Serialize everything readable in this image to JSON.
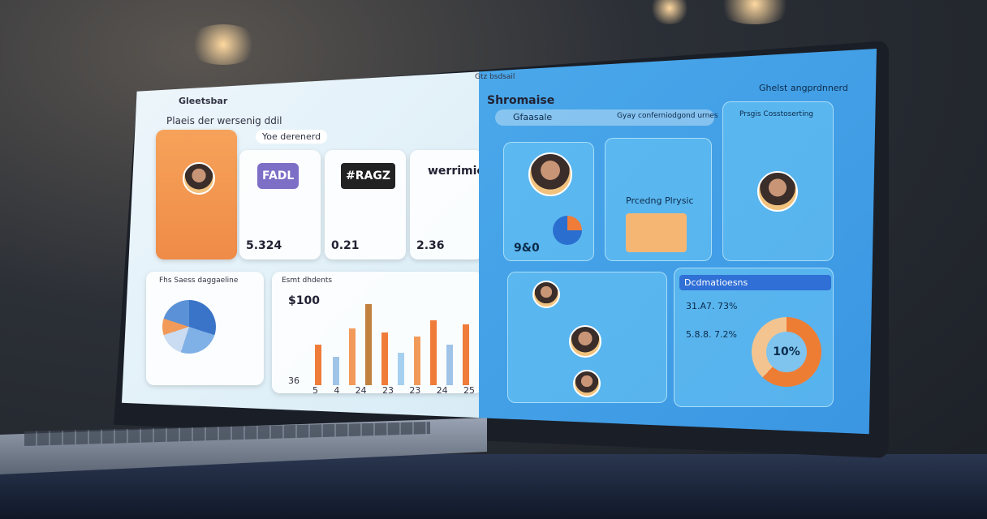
{
  "left_panel": {
    "app_name": "Gleetsbar",
    "heading": "Plaeis der wersenig ddil",
    "search": "Yoe derenerd",
    "cards": [
      {
        "brand": "FADL",
        "value": "5.324"
      },
      {
        "brand": "#RAGZ",
        "value": "0.21"
      },
      {
        "brand": "werrimieg",
        "value": "2.36"
      }
    ],
    "pie_title": "Fhs Saess daggaeline",
    "bar_title": "Esmt dhdents",
    "bar_value": "$100",
    "bar_base": "36",
    "x_labels": [
      "5",
      "4",
      "24",
      "23",
      "23",
      "24",
      "25"
    ]
  },
  "right_panel": {
    "top_title": "Gtz bsdsail",
    "title": "Shromaise",
    "account": "Ghelst angprdnnerd",
    "search": "Gfaasale",
    "search_hint": "Gyay conferniodgond urnes",
    "side_title": "Prsgis Cosstoserting",
    "profile_caption": "Prcedng Plrysic",
    "profile_value": "9&0",
    "stats_title": "Dcdmatioesns",
    "stats": [
      "31.A7. 73%",
      "5.8.8. 7.2%"
    ],
    "donut_value": "10%"
  }
}
